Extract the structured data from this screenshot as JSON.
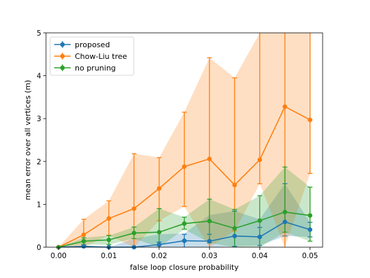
{
  "chart_data": {
    "type": "line",
    "xlabel": "false loop closure probability",
    "ylabel": "mean error over all vertices (m)",
    "xlim": [
      -0.0025,
      0.0525
    ],
    "ylim": [
      0,
      5
    ],
    "x": [
      0.0,
      0.005,
      0.01,
      0.015,
      0.02,
      0.025,
      0.03,
      0.035,
      0.04,
      0.045,
      0.05
    ],
    "x_ticks": [
      0.0,
      0.01,
      0.02,
      0.03,
      0.04,
      0.05
    ],
    "x_tick_labels": [
      "0.00",
      "0.01",
      "0.02",
      "0.03",
      "0.04",
      "0.05"
    ],
    "y_ticks": [
      0,
      1,
      2,
      3,
      4,
      5
    ],
    "y_tick_labels": [
      "0",
      "1",
      "2",
      "3",
      "4",
      "5"
    ],
    "grid": false,
    "legend_position": "top-left",
    "series": [
      {
        "name": "proposed",
        "color": "#1f77b4",
        "values": [
          0.0,
          0.02,
          0.0,
          0.0,
          0.06,
          0.15,
          0.14,
          0.26,
          0.24,
          0.59,
          0.41
        ],
        "err_low": [
          0.0,
          0.0,
          0.0,
          0.0,
          0.0,
          0.0,
          0.0,
          0.02,
          0.04,
          0.26,
          0.24
        ],
        "err_high": [
          0.0,
          0.04,
          0.0,
          0.0,
          0.12,
          0.3,
          0.3,
          0.84,
          0.46,
          1.48,
          0.58
        ],
        "band_low": [
          0.0,
          0.0,
          0.0,
          0.0,
          0.0,
          0.0,
          0.0,
          0.02,
          0.04,
          0.26,
          0.24
        ],
        "band_high": [
          0.0,
          0.04,
          0.0,
          0.2,
          0.3,
          0.32,
          0.75,
          0.84,
          0.65,
          1.48,
          0.58
        ]
      },
      {
        "name": "Chow-Liu tree",
        "color": "#ff7f0e",
        "values": [
          0.0,
          0.29,
          0.67,
          0.9,
          1.37,
          1.88,
          2.06,
          1.45,
          2.04,
          3.28,
          2.97
        ],
        "err_low": [
          0.0,
          0.0,
          0.28,
          0.0,
          0.62,
          0.95,
          0.0,
          0.38,
          1.48,
          0.0,
          1.72
        ],
        "err_high": [
          0.0,
          0.65,
          1.08,
          2.18,
          2.09,
          3.15,
          4.42,
          3.95,
          5.0,
          5.0,
          5.0
        ],
        "band_low": [
          0.0,
          0.0,
          0.28,
          0.0,
          0.62,
          0.95,
          0.0,
          0.38,
          1.48,
          0.0,
          1.72
        ],
        "band_high": [
          0.0,
          0.65,
          1.08,
          2.18,
          2.09,
          3.15,
          4.42,
          3.95,
          5.0,
          5.0,
          5.0
        ]
      },
      {
        "name": "no pruning",
        "color": "#2ca02c",
        "values": [
          0.0,
          0.14,
          0.17,
          0.33,
          0.35,
          0.55,
          0.61,
          0.44,
          0.62,
          0.82,
          0.74
        ],
        "err_low": [
          0.0,
          0.06,
          0.06,
          0.2,
          0.0,
          0.42,
          0.1,
          0.0,
          0.0,
          0.35,
          0.14
        ],
        "err_high": [
          0.0,
          0.22,
          0.27,
          0.47,
          0.9,
          0.7,
          1.12,
          0.88,
          1.2,
          1.87,
          1.4
        ],
        "band_low": [
          0.0,
          0.06,
          0.06,
          0.2,
          0.0,
          0.42,
          0.1,
          0.0,
          0.0,
          0.35,
          0.14
        ],
        "band_high": [
          0.0,
          0.22,
          0.27,
          0.47,
          0.9,
          0.7,
          1.12,
          0.88,
          1.2,
          1.87,
          1.4
        ]
      }
    ]
  }
}
